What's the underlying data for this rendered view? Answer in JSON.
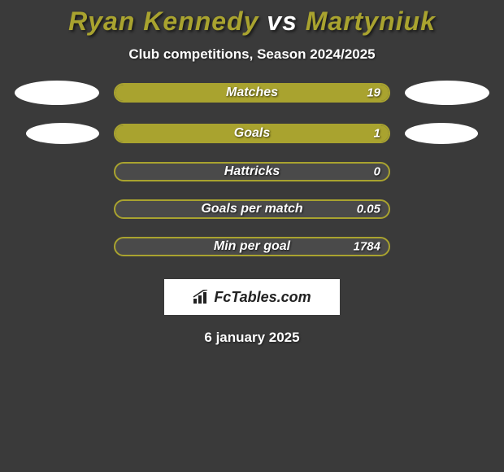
{
  "background_color": "#3a3a3a",
  "title": {
    "player1": "Ryan Kennedy",
    "vs": "vs",
    "player2": "Martyniuk",
    "player1_color": "#a9a32f",
    "vs_color": "#ffffff",
    "player2_color": "#a9a32f",
    "fontsize": 32
  },
  "subtitle": {
    "text": "Club competitions, Season 2024/2025",
    "fontsize": 17
  },
  "badge": {
    "width": 104,
    "height": 30,
    "color": "#ffffff",
    "width2": 90,
    "height2": 26
  },
  "bar": {
    "track_color": "#4a4a4a",
    "border_color": "#a9a32f",
    "fill_color": "#a9a32f",
    "track_width": 340,
    "track_height": 24,
    "label_fontsize": 16,
    "value_fontsize": 15
  },
  "stats": [
    {
      "label": "Matches",
      "value": "19",
      "fill_pct": 100,
      "show_badges": true
    },
    {
      "label": "Goals",
      "value": "1",
      "fill_pct": 100,
      "show_badges": true,
      "badge_small": true
    },
    {
      "label": "Hattricks",
      "value": "0",
      "fill_pct": 0,
      "show_badges": false
    },
    {
      "label": "Goals per match",
      "value": "0.05",
      "fill_pct": 0,
      "show_badges": false
    },
    {
      "label": "Min per goal",
      "value": "1784",
      "fill_pct": 0,
      "show_badges": false
    }
  ],
  "footer_logo": {
    "text": "FcTables.com",
    "fontsize": 18,
    "icon_color": "#222222"
  },
  "footer_date": {
    "text": "6 january 2025",
    "fontsize": 17
  }
}
